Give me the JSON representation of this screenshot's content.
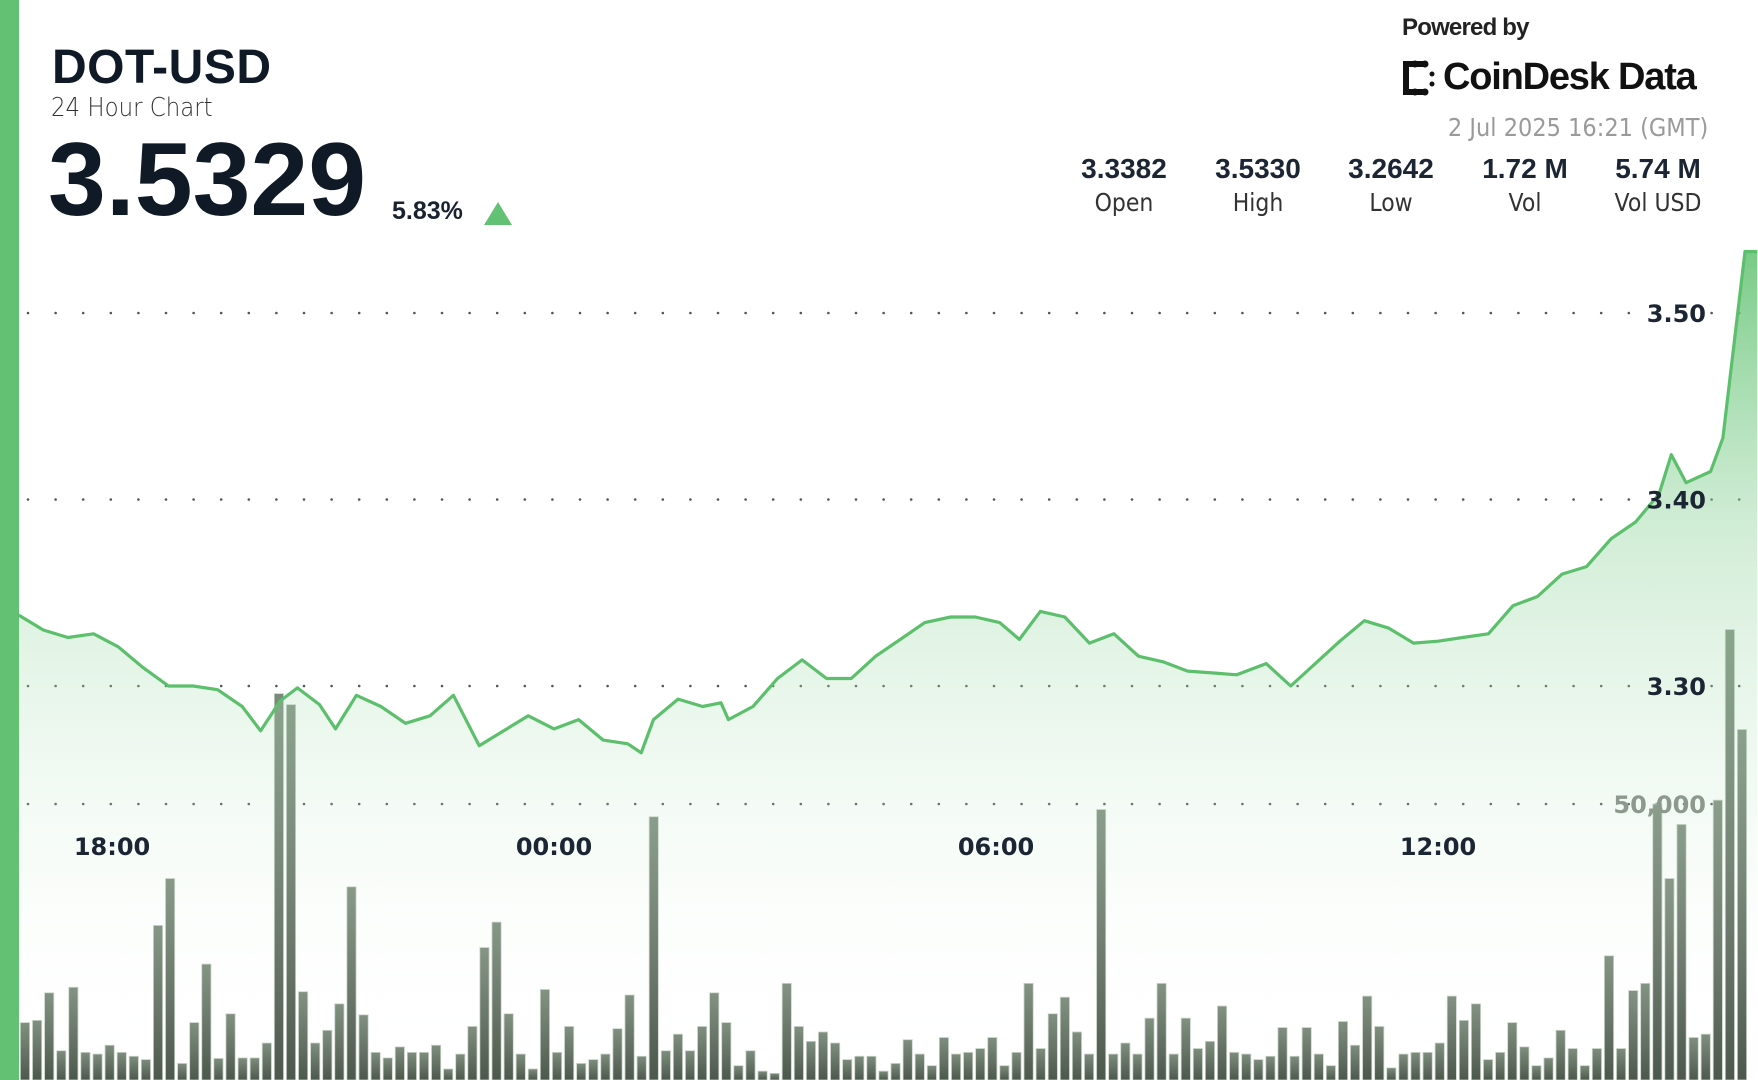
{
  "header": {
    "pair": "DOT-USD",
    "subtitle": "24 Hour Chart",
    "price": "3.5329",
    "change_pct": "5.83%",
    "change_direction": "up",
    "powered_by": "Powered by",
    "brand": "CoinDesk Data",
    "timestamp": "2 Jul 2025 16:21 (GMT)"
  },
  "stats": [
    {
      "value": "3.3382",
      "label": "Open"
    },
    {
      "value": "3.5330",
      "label": "High"
    },
    {
      "value": "3.2642",
      "label": "Low"
    },
    {
      "value": "1.72 M",
      "label": "Vol"
    },
    {
      "value": "5.74 M",
      "label": "Vol USD"
    }
  ],
  "colors": {
    "accent": "#63c174",
    "line": "#5cbf6c",
    "volume_bar": "#5e6a5e",
    "text": "#0f1a26",
    "muted": "#9a9a9a"
  },
  "icons": {
    "brand_logo": "coindesk-logo-icon",
    "change_arrow": "triangle-up-icon"
  },
  "chart_data": [
    {
      "type": "area",
      "x_ticks": [
        "18:00",
        "00:00",
        "06:00",
        "12:00"
      ],
      "y_ticks": [
        "3.30",
        "3.40",
        "3.50"
      ],
      "ylim": [
        3.2,
        3.55
      ],
      "grid": "dotted horizontal",
      "series": [
        {
          "points": [
            [
              "16:44",
              3.338
            ],
            [
              "17:04",
              3.33
            ],
            [
              "17:24",
              3.326
            ],
            [
              "17:45",
              3.328
            ],
            [
              "18:05",
              3.321
            ],
            [
              "18:25",
              3.31
            ],
            [
              "18:46",
              3.3
            ],
            [
              "19:06",
              3.3
            ],
            [
              "19:26",
              3.298
            ],
            [
              "19:46",
              3.289
            ],
            [
              "20:01",
              3.276
            ],
            [
              "20:17",
              3.292
            ],
            [
              "20:31",
              3.299
            ],
            [
              "20:49",
              3.29
            ],
            [
              "21:02",
              3.277
            ],
            [
              "21:19",
              3.295
            ],
            [
              "21:39",
              3.289
            ],
            [
              "21:59",
              3.28
            ],
            [
              "22:19",
              3.284
            ],
            [
              "22:38",
              3.295
            ],
            [
              "22:59",
              3.268
            ],
            [
              "23:19",
              3.276
            ],
            [
              "23:39",
              3.284
            ],
            [
              "00:00",
              3.277
            ],
            [
              "00:20",
              3.282
            ],
            [
              "00:40",
              3.271
            ],
            [
              "01:00",
              3.269
            ],
            [
              "01:11",
              3.2642
            ],
            [
              "01:21",
              3.282
            ],
            [
              "01:41",
              3.293
            ],
            [
              "02:01",
              3.289
            ],
            [
              "02:16",
              3.291
            ],
            [
              "02:22",
              3.282
            ],
            [
              "02:42",
              3.289
            ],
            [
              "03:02",
              3.304
            ],
            [
              "03:22",
              3.314
            ],
            [
              "03:42",
              3.304
            ],
            [
              "04:02",
              3.304
            ],
            [
              "04:22",
              3.316
            ],
            [
              "04:42",
              3.325
            ],
            [
              "05:02",
              3.334
            ],
            [
              "05:23",
              3.337
            ],
            [
              "05:43",
              3.337
            ],
            [
              "06:03",
              3.334
            ],
            [
              "06:19",
              3.325
            ],
            [
              "06:36",
              3.34
            ],
            [
              "06:56",
              3.337
            ],
            [
              "07:16",
              3.323
            ],
            [
              "07:36",
              3.328
            ],
            [
              "07:56",
              3.316
            ],
            [
              "08:16",
              3.313
            ],
            [
              "08:36",
              3.308
            ],
            [
              "08:56",
              3.307
            ],
            [
              "09:16",
              3.306
            ],
            [
              "09:40",
              3.312
            ],
            [
              "10:00",
              3.3
            ],
            [
              "10:20",
              3.312
            ],
            [
              "10:40",
              3.324
            ],
            [
              "11:00",
              3.335
            ],
            [
              "11:20",
              3.331
            ],
            [
              "11:40",
              3.323
            ],
            [
              "12:00",
              3.324
            ],
            [
              "12:20",
              3.326
            ],
            [
              "12:41",
              3.328
            ],
            [
              "13:01",
              3.343
            ],
            [
              "13:21",
              3.348
            ],
            [
              "13:41",
              3.36
            ],
            [
              "14:01",
              3.364
            ],
            [
              "14:21",
              3.379
            ],
            [
              "14:41",
              3.388
            ],
            [
              "15:00",
              3.403
            ],
            [
              "15:10",
              3.424
            ],
            [
              "15:22",
              3.409
            ],
            [
              "15:42",
              3.415
            ],
            [
              "15:52",
              3.433
            ],
            [
              "16:10",
              3.533
            ],
            [
              "16:20",
              3.5329
            ]
          ]
        }
      ]
    },
    {
      "type": "bar",
      "y_ticks": [
        "50,000"
      ],
      "interval": "10 min",
      "values": [
        10400,
        10800,
        15800,
        5300,
        16800,
        5000,
        4700,
        6300,
        5000,
        4300,
        3700,
        28000,
        36500,
        3000,
        10400,
        21000,
        3900,
        12000,
        4000,
        4000,
        6700,
        70000,
        68000,
        16000,
        6700,
        9000,
        13800,
        35000,
        11800,
        5000,
        4000,
        6000,
        5000,
        5000,
        6300,
        2000,
        4700,
        9700,
        24000,
        28600,
        12000,
        4700,
        2000,
        16400,
        5000,
        9700,
        3000,
        3700,
        4700,
        9300,
        15400,
        4300,
        47700,
        5300,
        8300,
        5300,
        9700,
        15800,
        10400,
        2600,
        5300,
        1600,
        1200,
        17500,
        9700,
        7000,
        8700,
        6700,
        3700,
        4300,
        4300,
        1600,
        3000,
        7300,
        4700,
        2600,
        7700,
        4700,
        5000,
        5700,
        7700,
        2600,
        5000,
        17500,
        5700,
        12000,
        15000,
        8700,
        4700,
        49000,
        4700,
        6700,
        4700,
        11200,
        17500,
        4700,
        11200,
        5700,
        7000,
        13400,
        5000,
        4700,
        3700,
        4300,
        9500,
        4300,
        9500,
        4700,
        2600,
        10600,
        6300,
        15200,
        9700,
        2200,
        4700,
        5000,
        5000,
        6700,
        15200,
        10800,
        13800,
        3700,
        5000,
        10400,
        6000,
        2600,
        4000,
        9000,
        5700,
        2600,
        5700,
        22500,
        5700,
        16200,
        17500,
        50000,
        36500,
        46300,
        7700,
        8300,
        50700,
        81600,
        63500
      ]
    }
  ]
}
